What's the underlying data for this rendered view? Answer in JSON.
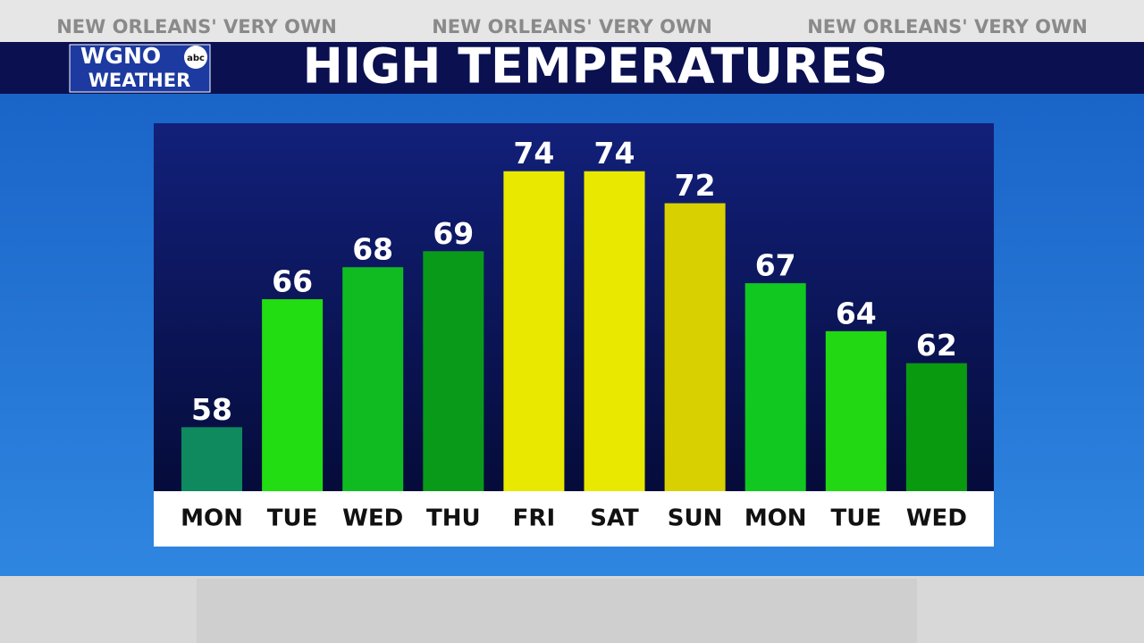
{
  "header": {
    "taglines": [
      "NEW ORLEANS' VERY OWN",
      "NEW ORLEANS' VERY OWN",
      "NEW ORLEANS' VERY OWN"
    ],
    "logo": {
      "station": "WGNO",
      "network": "abc",
      "brand": "WEATHER"
    }
  },
  "chart_data": {
    "type": "bar",
    "title": "HIGH TEMPERATURES",
    "categories": [
      "MON",
      "TUE",
      "WED",
      "THU",
      "FRI",
      "SAT",
      "SUN",
      "MON",
      "TUE",
      "WED"
    ],
    "values": [
      58,
      66,
      68,
      69,
      74,
      74,
      72,
      67,
      64,
      62
    ],
    "colors": [
      "#0e8a5e",
      "#22dd11",
      "#10bb22",
      "#0a9a1a",
      "#e8e800",
      "#e8e800",
      "#d8d000",
      "#10c820",
      "#22d812",
      "#0a9a10"
    ],
    "ylim": [
      54,
      77
    ]
  }
}
